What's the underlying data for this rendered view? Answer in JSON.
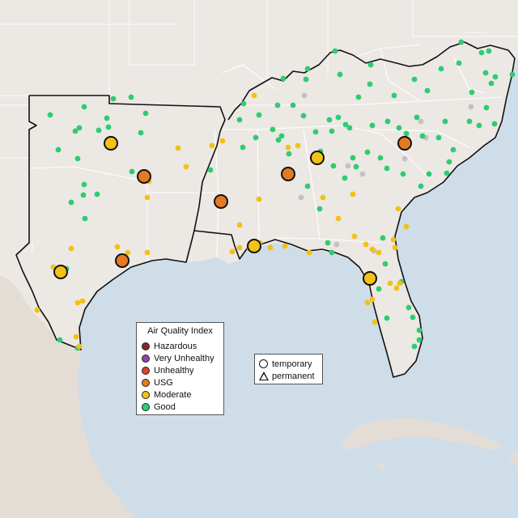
{
  "colors": {
    "water": "#cfdde9",
    "land": "#ece8e4",
    "land_shade": "#e2ddd8",
    "mexico": "#e3ddd6",
    "boundary": "#111111",
    "state_line": "#ffffff",
    "no_data": "#c2c2c2"
  },
  "legend": {
    "title": "Air Quality Index",
    "items": [
      {
        "label": "Hazardous",
        "color": "#7e2a2a"
      },
      {
        "label": "Very Unhealthy",
        "color": "#8e44ad"
      },
      {
        "label": "Unhealthy",
        "color": "#e0402c"
      },
      {
        "label": "USG",
        "color": "#e37a24"
      },
      {
        "label": "Moderate",
        "color": "#f2c214"
      },
      {
        "label": "Good",
        "color": "#2ecc71"
      }
    ]
  },
  "shape_legend": {
    "temporary": "temporary",
    "permanent": "permanent"
  }
}
